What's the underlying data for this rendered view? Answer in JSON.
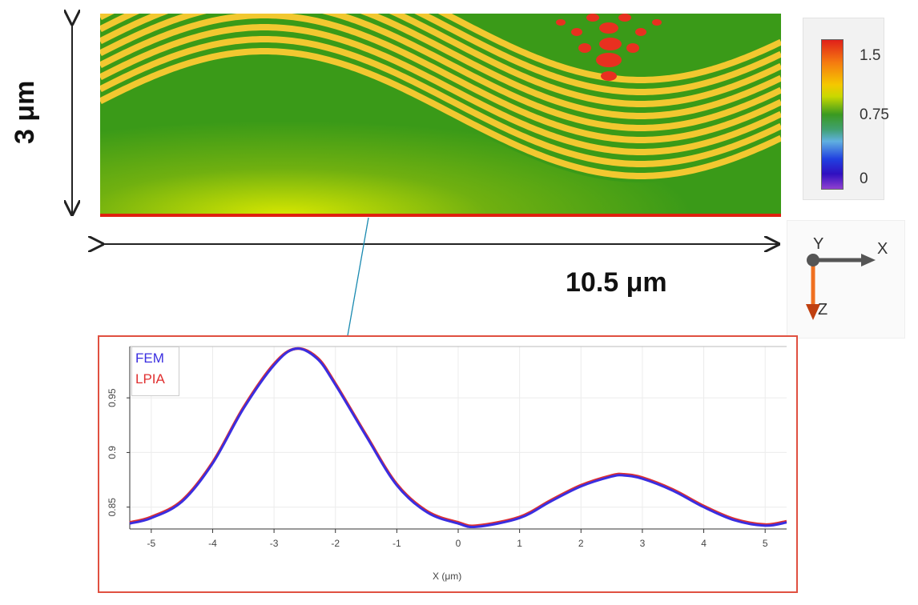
{
  "figure": {
    "height_label": "3 μm",
    "width_label": "10.5 μm"
  },
  "colorbar": {
    "ticks": [
      "1.5",
      "0.75",
      "0"
    ],
    "colors": {
      "max": "#e0201a",
      "mid": "#3a9a20",
      "min": "#9040d0"
    }
  },
  "axes_triad": {
    "x": "X",
    "y": "Y",
    "z": "Z"
  },
  "chart_data": {
    "type": "line",
    "title": "",
    "xlabel": "X (μm)",
    "ylabel": "",
    "xlim": [
      -5.35,
      5.35
    ],
    "ylim": [
      0.83,
      0.997
    ],
    "xticks": [
      -5,
      -4,
      -3,
      -2,
      -1,
      0,
      1,
      2,
      3,
      4,
      5
    ],
    "xtick_labels": [
      "-5",
      "-4",
      "-3",
      "-2",
      "-1",
      "0",
      "1",
      "2",
      "3",
      "4",
      "5"
    ],
    "yticks": [
      0.85,
      0.9,
      0.95
    ],
    "ytick_labels": [
      "0.85",
      "0.9",
      "0.95"
    ],
    "grid": true,
    "legend": "top-left",
    "x": [
      -5.35,
      -5.0,
      -4.5,
      -4.0,
      -3.5,
      -3.0,
      -2.65,
      -2.3,
      -2.0,
      -1.5,
      -1.0,
      -0.5,
      0.0,
      0.3,
      1.0,
      1.5,
      2.0,
      2.5,
      2.7,
      3.0,
      3.5,
      4.0,
      4.5,
      5.0,
      5.35
    ],
    "series": [
      {
        "name": "FEM",
        "color": "#3a2ee0",
        "values": [
          0.835,
          0.84,
          0.855,
          0.89,
          0.94,
          0.98,
          0.995,
          0.986,
          0.962,
          0.915,
          0.87,
          0.845,
          0.835,
          0.832,
          0.84,
          0.855,
          0.869,
          0.878,
          0.879,
          0.876,
          0.865,
          0.85,
          0.838,
          0.833,
          0.836
        ]
      },
      {
        "name": "LPIA",
        "color": "#e03030",
        "values": [
          0.836,
          0.841,
          0.856,
          0.891,
          0.941,
          0.981,
          0.995,
          0.987,
          0.963,
          0.916,
          0.871,
          0.846,
          0.836,
          0.833,
          0.841,
          0.856,
          0.87,
          0.879,
          0.88,
          0.877,
          0.866,
          0.851,
          0.839,
          0.834,
          0.837
        ]
      }
    ]
  }
}
